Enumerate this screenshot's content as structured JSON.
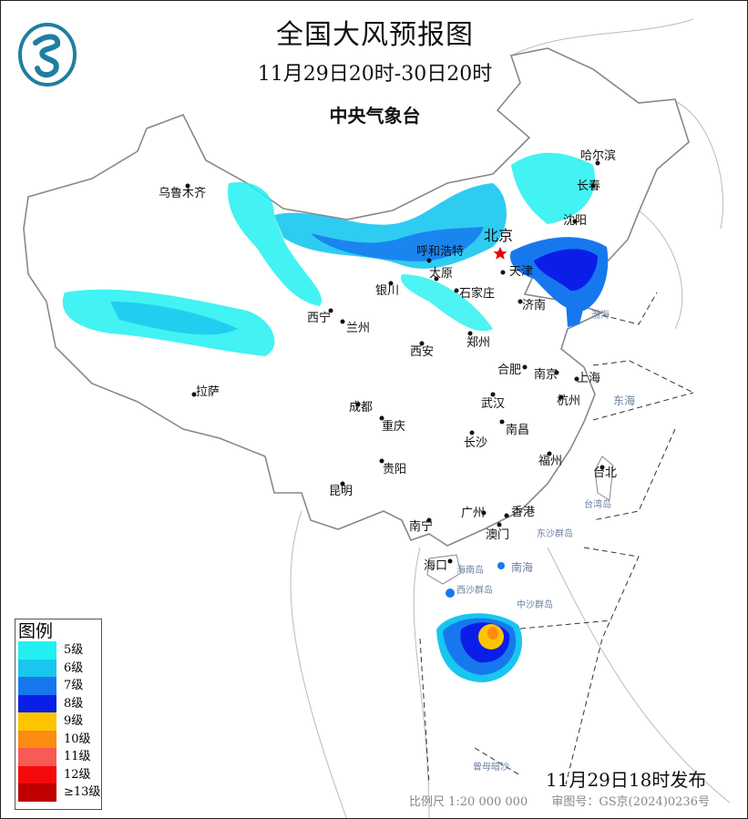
{
  "header": {
    "title": "全国大风预报图",
    "period": "11月29日20时-30日20时",
    "issuer": "中央气象台",
    "logo_icon": "cma-logo"
  },
  "legend": {
    "title": "图例",
    "items": [
      {
        "label": "5级",
        "color": "#22f0f0"
      },
      {
        "label": "6级",
        "color": "#18c6ef"
      },
      {
        "label": "7级",
        "color": "#1778ee"
      },
      {
        "label": "8级",
        "color": "#0a1ee8"
      },
      {
        "label": "9级",
        "color": "#fcc500"
      },
      {
        "label": "10级",
        "color": "#fb8c10"
      },
      {
        "label": "11级",
        "color": "#f85a55"
      },
      {
        "label": "12级",
        "color": "#f40a0a"
      },
      {
        "label": "≥13级",
        "color": "#c00000"
      }
    ]
  },
  "cities": [
    {
      "name": "乌鲁木齐"
    },
    {
      "name": "哈尔滨"
    },
    {
      "name": "长春"
    },
    {
      "name": "沈阳"
    },
    {
      "name": "北京"
    },
    {
      "name": "天津"
    },
    {
      "name": "呼和浩特"
    },
    {
      "name": "太原"
    },
    {
      "name": "石家庄"
    },
    {
      "name": "银川"
    },
    {
      "name": "济南"
    },
    {
      "name": "西宁"
    },
    {
      "name": "兰州"
    },
    {
      "name": "郑州"
    },
    {
      "name": "西安"
    },
    {
      "name": "合肥"
    },
    {
      "name": "南京"
    },
    {
      "name": "上海"
    },
    {
      "name": "杭州"
    },
    {
      "name": "武汉"
    },
    {
      "name": "拉萨"
    },
    {
      "name": "成都"
    },
    {
      "name": "重庆"
    },
    {
      "name": "南昌"
    },
    {
      "name": "长沙"
    },
    {
      "name": "福州"
    },
    {
      "name": "台北"
    },
    {
      "name": "贵阳"
    },
    {
      "name": "昆明"
    },
    {
      "name": "南宁"
    },
    {
      "name": "广州"
    },
    {
      "name": "香港"
    },
    {
      "name": "澳门"
    },
    {
      "name": "海口"
    }
  ],
  "seas": [
    {
      "name": "渤海"
    },
    {
      "name": "东海"
    },
    {
      "name": "南海"
    },
    {
      "name": "台湾岛"
    },
    {
      "name": "海南岛"
    },
    {
      "name": "东沙群岛"
    },
    {
      "name": "西沙群岛"
    },
    {
      "name": "中沙群岛"
    },
    {
      "name": "曾母暗沙"
    }
  ],
  "footer": {
    "issued": "11月29日18时发布",
    "scale": "比例尺 1:20 000 000",
    "review_no": "审图号：GS京(2024)0236号"
  }
}
